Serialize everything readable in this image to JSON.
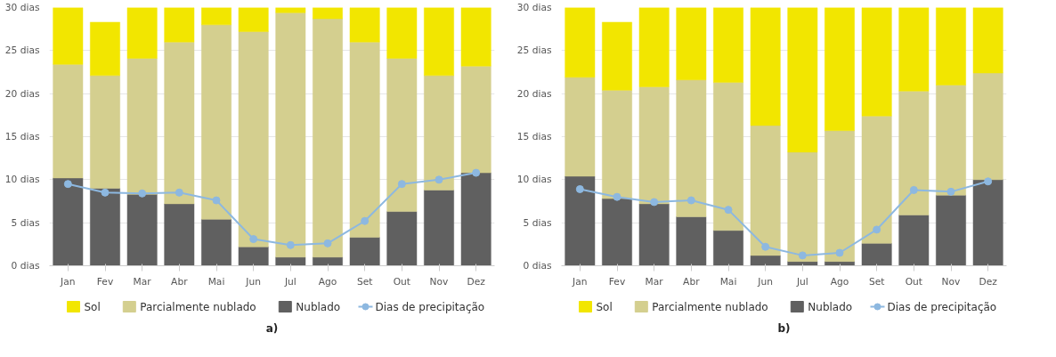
{
  "chart_data": [
    {
      "type": "bar",
      "stacked": true,
      "categories": [
        "Jan",
        "Fev",
        "Mar",
        "Abr",
        "Mai",
        "Jun",
        "Jul",
        "Ago",
        "Set",
        "Out",
        "Nov",
        "Dez"
      ],
      "ylim": [
        0,
        30
      ],
      "yticks": [
        {
          "value": 0,
          "label": "0 dias"
        },
        {
          "value": 5,
          "label": "5 dias"
        },
        {
          "value": 10,
          "label": "10 dias"
        },
        {
          "value": 15,
          "label": "15 dias"
        },
        {
          "value": 20,
          "label": "20 dias"
        },
        {
          "value": 25,
          "label": "25 dias"
        },
        {
          "value": 30,
          "label": "30 dias"
        }
      ],
      "grid": "y",
      "legend": "bottom",
      "marker": "circle",
      "annotations": [
        "a)"
      ],
      "series": [
        {
          "name": "Nublado",
          "color": "#606060",
          "values": [
            10.2,
            9.0,
            8.3,
            7.2,
            5.4,
            2.2,
            1.0,
            1.0,
            3.3,
            6.3,
            8.8,
            10.8
          ]
        },
        {
          "name": "Parcialmente nublado",
          "color": "#d4cf8f",
          "values": [
            13.2,
            13.1,
            15.8,
            18.8,
            22.6,
            25.0,
            28.4,
            27.7,
            22.7,
            17.8,
            13.3,
            12.4
          ]
        },
        {
          "name": "Sol",
          "color": "#f2e600",
          "values": [
            6.6,
            6.2,
            5.9,
            4.0,
            2.0,
            2.8,
            0.6,
            1.3,
            4.0,
            5.9,
            7.9,
            6.8
          ]
        },
        {
          "name": "Dias de precipitação",
          "type": "line",
          "color": "#8db8e0",
          "values": [
            9.5,
            8.5,
            8.4,
            8.5,
            7.6,
            3.1,
            2.4,
            2.6,
            5.2,
            9.5,
            10.0,
            10.8
          ]
        }
      ]
    },
    {
      "type": "bar",
      "stacked": true,
      "categories": [
        "Jan",
        "Fev",
        "Mar",
        "Abr",
        "Mai",
        "Jun",
        "Jul",
        "Ago",
        "Set",
        "Out",
        "Nov",
        "Dez"
      ],
      "ylim": [
        0,
        30
      ],
      "yticks": [
        {
          "value": 0,
          "label": "0 dias"
        },
        {
          "value": 5,
          "label": "5 dias"
        },
        {
          "value": 10,
          "label": "10 dias"
        },
        {
          "value": 15,
          "label": "15 dias"
        },
        {
          "value": 20,
          "label": "20 dias"
        },
        {
          "value": 25,
          "label": "25 dias"
        },
        {
          "value": 30,
          "label": "30 dias"
        }
      ],
      "grid": "y",
      "legend": "bottom",
      "marker": "circle",
      "annotations": [
        "b)"
      ],
      "series": [
        {
          "name": "Nublado",
          "color": "#606060",
          "values": [
            10.4,
            7.8,
            7.2,
            5.7,
            4.1,
            1.2,
            0.5,
            0.5,
            2.6,
            5.9,
            8.2,
            10.0
          ]
        },
        {
          "name": "Parcialmente nublado",
          "color": "#d4cf8f",
          "values": [
            11.5,
            12.6,
            13.6,
            15.9,
            17.2,
            15.1,
            12.7,
            15.2,
            14.8,
            14.4,
            12.8,
            12.4
          ]
        },
        {
          "name": "Sol",
          "color": "#f2e600",
          "values": [
            8.1,
            7.9,
            9.2,
            8.4,
            8.7,
            13.7,
            16.8,
            14.3,
            12.6,
            9.7,
            9.0,
            7.6
          ]
        },
        {
          "name": "Dias de precipitação",
          "type": "line",
          "color": "#8db8e0",
          "values": [
            8.9,
            8.0,
            7.4,
            7.6,
            6.5,
            2.2,
            1.2,
            1.5,
            4.2,
            8.8,
            8.6,
            9.8
          ]
        }
      ]
    }
  ]
}
